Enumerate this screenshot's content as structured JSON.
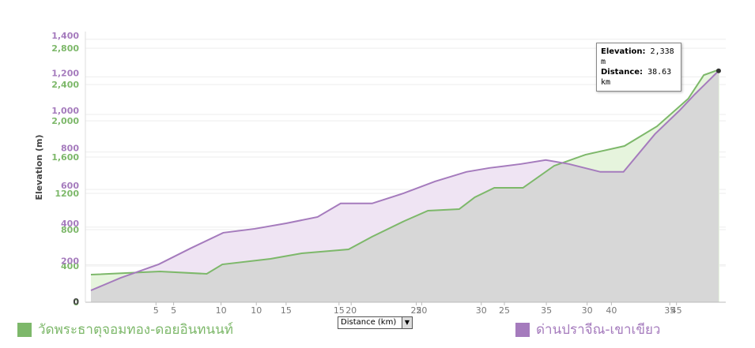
{
  "chart_data": {
    "type": "area",
    "y_label": "Elevation (m)",
    "x_label": "Distance (km)",
    "series": [
      {
        "name": "วัดพระธาตุจอมทอง-ดอยอินทนนท์",
        "color": "#7db86a",
        "fill": "#e6f4dd",
        "x": [
          0,
          5.3,
          8.9,
          10.1,
          13.8,
          16.2,
          19.8,
          21.6,
          24.1,
          25.9,
          28.3,
          29.5,
          31.0,
          33.2,
          35.6,
          38.0,
          41.0,
          43.5,
          45.9,
          47.1,
          48.3
        ],
        "values": [
          304,
          339,
          313,
          417,
          478,
          539,
          583,
          722,
          896,
          1009,
          1026,
          1157,
          1261,
          1261,
          1504,
          1626,
          1722,
          1939,
          2243,
          2504,
          2565
        ]
      },
      {
        "name": "ด่านปราจีณ-เขาเขียว",
        "color": "#a57bbd",
        "fill": "#efe4f3",
        "axis": "y2",
        "x": [
          0,
          1.8,
          4.1,
          6.0,
          8.0,
          9.9,
          11.8,
          13.7,
          15.1,
          17.0,
          18.9,
          20.8,
          22.7,
          24.1,
          26.0,
          27.5,
          28.9,
          30.8,
          32.2,
          34.1,
          35.6,
          36.5,
          37.95
        ],
        "values": [
          63,
          130,
          202,
          286,
          370,
          391,
          420,
          454,
          526,
          526,
          580,
          643,
          694,
          715,
          736,
          757,
          736,
          694,
          694,
          895,
          1022,
          1106,
          1232
        ]
      }
    ],
    "xlim": [
      0,
      48.3
    ],
    "xticks": [
      5,
      10,
      15,
      20,
      25,
      30,
      35,
      40,
      45
    ],
    "x2lim": [
      0,
      38
    ],
    "x2ticks": [
      5,
      10,
      15,
      20,
      25,
      30,
      35
    ],
    "ylim": [
      0,
      2940
    ],
    "yticks": [
      0,
      400,
      800,
      1200,
      {
        "value": 1600,
        "label": "1,600"
      },
      {
        "value": 2000,
        "label": "2,000"
      },
      {
        "value": 2400,
        "label": "2,400"
      },
      {
        "value": 2800,
        "label": "2,800"
      }
    ],
    "y2lim": [
      0,
      1420
    ],
    "y2ticks": [
      200,
      400,
      600,
      800,
      {
        "value": 1000,
        "label": "1,000"
      },
      {
        "value": 1200,
        "label": "1,200"
      },
      {
        "value": 1400,
        "label": "1,400"
      }
    ],
    "grid": true,
    "tooltip": {
      "elevation_label": "Elevation:",
      "elevation": "2,338 m",
      "distance_label": "Distance:",
      "distance": "38.63 km"
    }
  }
}
